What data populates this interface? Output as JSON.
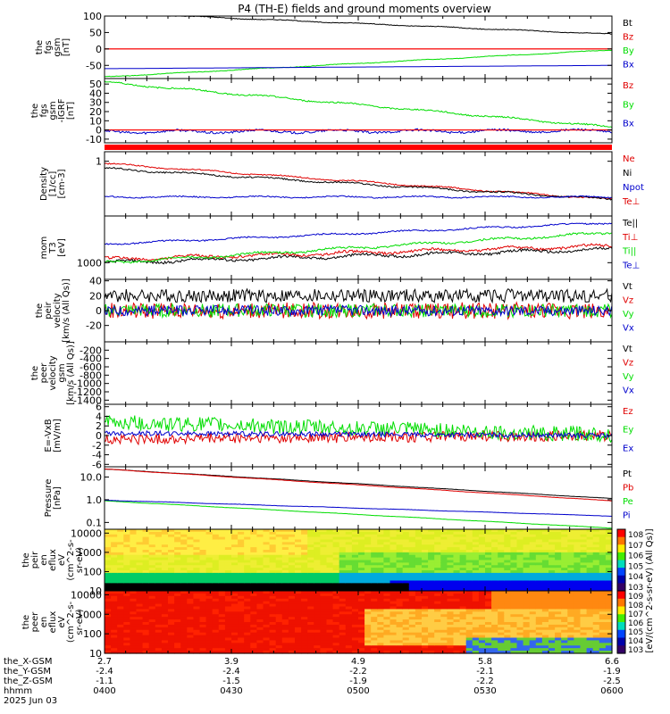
{
  "title": "P4 (TH-E) fields and ground moments overview",
  "chart_data": [
    {
      "type": "line",
      "ylabel": [
        "the",
        "fgs",
        "gsm",
        "[nT]"
      ],
      "ylim": [
        -90,
        100
      ],
      "yticks": [
        100,
        50,
        0,
        -50
      ],
      "zero_line": true,
      "series": [
        {
          "name": "Bt",
          "color": "#000000",
          "kind": "smooth",
          "start": 110,
          "end": 45,
          "noise": 2
        },
        {
          "name": "Bz",
          "color": "#e00000",
          "kind": "smooth",
          "start": 0,
          "end": 0,
          "noise": 0
        },
        {
          "name": "By",
          "color": "#00dd00",
          "kind": "smooth",
          "start": -85,
          "end": -3,
          "noise": 1.5
        },
        {
          "name": "Bx",
          "color": "#0000cc",
          "kind": "smooth",
          "start": -60,
          "end": -50,
          "noise": 0
        }
      ]
    },
    {
      "type": "line",
      "ylabel": [
        "the",
        "fgs",
        "gsm",
        "-IGRF",
        "[nT]"
      ],
      "ylim": [
        -14,
        56
      ],
      "yticks": [
        50,
        40,
        30,
        20,
        10,
        0,
        -10
      ],
      "zero_line": true,
      "series": [
        {
          "name": "Bz",
          "color": "#e00000",
          "kind": "smooth",
          "start": 0,
          "end": 0,
          "noise": 0
        },
        {
          "name": "By",
          "color": "#00dd00",
          "kind": "smooth",
          "start": 52,
          "end": 3,
          "noise": 1.5
        },
        {
          "name": "Bx",
          "color": "#0000cc",
          "kind": "smooth",
          "start": -2,
          "end": -1,
          "noise": 2.5
        }
      ]
    },
    {
      "type": "line",
      "ylabel": [
        "Density",
        "[1/cc]",
        "[cm-3]"
      ],
      "ylim": [
        -1.3,
        1.4
      ],
      "yticks": [
        1
      ],
      "yticklabels": [
        "1"
      ],
      "series": [
        {
          "name": "Ne",
          "color": "#e00000",
          "kind": "smooth",
          "start": 0.9,
          "end": -0.6,
          "noise": 0.05
        },
        {
          "name": "Ni",
          "color": "#000000",
          "kind": "smooth",
          "start": 0.7,
          "end": -0.6,
          "noise": 0.06
        },
        {
          "name": "Npot",
          "color": "#0000cc",
          "kind": "smooth",
          "start": -0.5,
          "end": -0.5,
          "noise": 0.05
        },
        {
          "name": "Te⊥",
          "color": "#e00000",
          "kind": "none"
        }
      ]
    },
    {
      "type": "line",
      "ylabel": [
        "mom",
        "T3",
        "[eV]"
      ],
      "ylim": [
        2.75,
        3.7
      ],
      "yticks": [
        3.0
      ],
      "yticklabels": [
        "1000"
      ],
      "series": [
        {
          "name": "Te||",
          "color": "#000000",
          "kind": "smooth",
          "start": 3.0,
          "end": 3.2,
          "noise": 0.04
        },
        {
          "name": "Ti⊥",
          "color": "#e00000",
          "kind": "smooth",
          "start": 3.05,
          "end": 3.25,
          "noise": 0.04
        },
        {
          "name": "Ti||",
          "color": "#00dd00",
          "kind": "smooth",
          "start": 3.0,
          "end": 3.45,
          "noise": 0.03
        },
        {
          "name": "Te⊥",
          "color": "#0000cc",
          "kind": "smooth",
          "start": 3.28,
          "end": 3.6,
          "noise": 0.02
        }
      ]
    },
    {
      "type": "line",
      "ylabel": [
        "the",
        "peir",
        "velocity",
        "[km/s (All Qs)]"
      ],
      "ylim": [
        -42,
        42
      ],
      "yticks": [
        40,
        20,
        0,
        -20
      ],
      "series": [
        {
          "name": "Vt",
          "color": "#000000",
          "kind": "noisy",
          "start": 20,
          "end": 20,
          "noise": 9
        },
        {
          "name": "Vz",
          "color": "#e00000",
          "kind": "noisy",
          "start": 0,
          "end": 0,
          "noise": 11
        },
        {
          "name": "Vy",
          "color": "#00dd00",
          "kind": "noisy",
          "start": 0,
          "end": 0,
          "noise": 9
        },
        {
          "name": "Vx",
          "color": "#0000cc",
          "kind": "noisy",
          "start": 0,
          "end": 0,
          "noise": 7
        }
      ]
    },
    {
      "type": "line",
      "ylabel": [
        "the",
        "peer",
        "velocity",
        "gsm",
        "[km/s (All Qs)]"
      ],
      "ylim": [
        -1500,
        0
      ],
      "yticks": [
        -200,
        -400,
        -600,
        -800,
        -1000,
        -1200,
        -1400
      ],
      "series": [
        {
          "name": "Vt",
          "color": "#000000",
          "kind": "none"
        },
        {
          "name": "Vz",
          "color": "#e00000",
          "kind": "none"
        },
        {
          "name": "Vy",
          "color": "#00dd00",
          "kind": "none"
        },
        {
          "name": "Vx",
          "color": "#0000cc",
          "kind": "none"
        }
      ]
    },
    {
      "type": "line",
      "ylabel": [
        "E=-VxB",
        "[mV/m]"
      ],
      "ylim": [
        -6.5,
        6.5
      ],
      "yticks": [
        6,
        4,
        2,
        0,
        -2,
        -4,
        -6
      ],
      "series": [
        {
          "name": "Ez",
          "color": "#e00000",
          "kind": "noisy",
          "start": -0.8,
          "end": 0,
          "noise": 1.1
        },
        {
          "name": "Ey",
          "color": "#00dd00",
          "kind": "noisy",
          "start": 2.8,
          "end": 0.2,
          "noise": 1.6
        },
        {
          "name": "Ex",
          "color": "#0000cc",
          "kind": "noisy",
          "start": 0.5,
          "end": 0,
          "noise": 0.5
        }
      ]
    },
    {
      "type": "line",
      "ylabel": [
        "Pressure",
        "[nPa]"
      ],
      "ylim": [
        -1.3,
        1.45
      ],
      "yticks": [
        1,
        0,
        -1
      ],
      "yticklabels": [
        "10.0",
        "1.0",
        "0.1"
      ],
      "series": [
        {
          "name": "Pt",
          "color": "#000000",
          "kind": "smooth",
          "start": 1.35,
          "end": 0.05,
          "noise": 0.01
        },
        {
          "name": "Pb",
          "color": "#e00000",
          "kind": "smooth",
          "start": 1.35,
          "end": -0.05,
          "noise": 0.01
        },
        {
          "name": "Pe",
          "color": "#00dd00",
          "kind": "smooth",
          "start": -0.05,
          "end": -1.25,
          "noise": 0.01
        },
        {
          "name": "Pi",
          "color": "#0000cc",
          "kind": "smooth",
          "start": -0.02,
          "end": -0.72,
          "noise": 0.01
        }
      ]
    },
    {
      "type": "heatmap",
      "ylabel": [
        "the",
        "peir",
        "en",
        "eflux",
        "eV",
        "(cm^2-s-",
        "sr-eV)"
      ],
      "ylim": [
        1,
        4.2
      ],
      "yticks": [
        4,
        3,
        2,
        1
      ],
      "yticklabels": [
        "10000",
        "1000",
        "100",
        "10"
      ],
      "colorbar_ticks": [
        "10^8",
        "10^7",
        "10^6",
        "10^5",
        "10^4",
        "10^3"
      ]
    },
    {
      "type": "heatmap",
      "ylabel": [
        "the",
        "peer",
        "en",
        "eflux",
        "eV",
        "(cm^2-s-",
        "sr-eV)"
      ],
      "ylim": [
        1,
        4.2
      ],
      "yticks": [
        4,
        3,
        2,
        1
      ],
      "yticklabels": [
        "10000",
        "1000",
        "100",
        "10"
      ],
      "colorbar_ticks": [
        "10^9",
        "10^8",
        "10^7",
        "10^6",
        "10^5",
        "10^4",
        "10^3"
      ]
    }
  ],
  "colorbar_label": "[eV/(cm^2-s-sr-eV) (All Qs)]",
  "x_axis": {
    "row_labels": [
      "the_X-GSM",
      "the_Y-GSM",
      "the_Z-GSM",
      "hhmm",
      "2025 Jun 03"
    ],
    "ticks": [
      {
        "x": "2.7",
        "y": "-2.4",
        "z": "-1.1",
        "t": "0400"
      },
      {
        "x": "3.9",
        "y": "-2.4",
        "z": "-1.5",
        "t": "0430"
      },
      {
        "x": "4.9",
        "y": "-2.2",
        "z": "-1.9",
        "t": "0500"
      },
      {
        "x": "5.8",
        "y": "-2.1",
        "z": "-2.2",
        "t": "0530"
      },
      {
        "x": "6.6",
        "y": "-1.9",
        "z": "-2.5",
        "t": "0600"
      }
    ],
    "time_range_minutes": [
      0,
      120
    ]
  }
}
